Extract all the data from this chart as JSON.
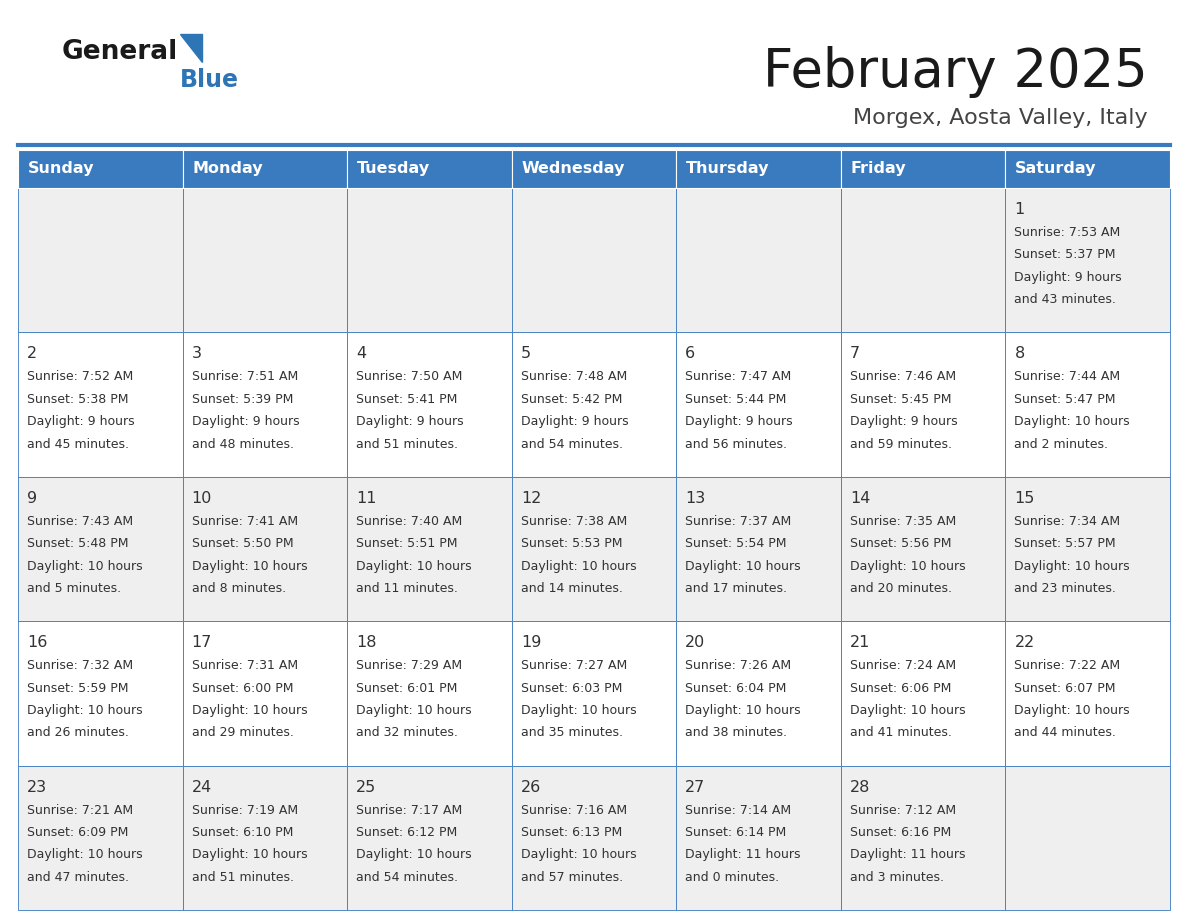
{
  "title": "February 2025",
  "subtitle": "Morgex, Aosta Valley, Italy",
  "header_bg": "#3a7abf",
  "header_text": "#FFFFFF",
  "header_days": [
    "Sunday",
    "Monday",
    "Tuesday",
    "Wednesday",
    "Thursday",
    "Friday",
    "Saturday"
  ],
  "cell_bg_gray": "#EFEFEF",
  "cell_bg_white": "#FFFFFF",
  "cell_border_color": "#3a7abf",
  "day_number_color": "#333333",
  "text_color": "#333333",
  "logo_general_color": "#1a1a1a",
  "logo_blue_color": "#2E75B6",
  "days": [
    {
      "day": 1,
      "col": 6,
      "row": 0,
      "sunrise": "7:53 AM",
      "sunset": "5:37 PM",
      "daylight_line1": "Daylight: 9 hours",
      "daylight_line2": "and 43 minutes."
    },
    {
      "day": 2,
      "col": 0,
      "row": 1,
      "sunrise": "7:52 AM",
      "sunset": "5:38 PM",
      "daylight_line1": "Daylight: 9 hours",
      "daylight_line2": "and 45 minutes."
    },
    {
      "day": 3,
      "col": 1,
      "row": 1,
      "sunrise": "7:51 AM",
      "sunset": "5:39 PM",
      "daylight_line1": "Daylight: 9 hours",
      "daylight_line2": "and 48 minutes."
    },
    {
      "day": 4,
      "col": 2,
      "row": 1,
      "sunrise": "7:50 AM",
      "sunset": "5:41 PM",
      "daylight_line1": "Daylight: 9 hours",
      "daylight_line2": "and 51 minutes."
    },
    {
      "day": 5,
      "col": 3,
      "row": 1,
      "sunrise": "7:48 AM",
      "sunset": "5:42 PM",
      "daylight_line1": "Daylight: 9 hours",
      "daylight_line2": "and 54 minutes."
    },
    {
      "day": 6,
      "col": 4,
      "row": 1,
      "sunrise": "7:47 AM",
      "sunset": "5:44 PM",
      "daylight_line1": "Daylight: 9 hours",
      "daylight_line2": "and 56 minutes."
    },
    {
      "day": 7,
      "col": 5,
      "row": 1,
      "sunrise": "7:46 AM",
      "sunset": "5:45 PM",
      "daylight_line1": "Daylight: 9 hours",
      "daylight_line2": "and 59 minutes."
    },
    {
      "day": 8,
      "col": 6,
      "row": 1,
      "sunrise": "7:44 AM",
      "sunset": "5:47 PM",
      "daylight_line1": "Daylight: 10 hours",
      "daylight_line2": "and 2 minutes."
    },
    {
      "day": 9,
      "col": 0,
      "row": 2,
      "sunrise": "7:43 AM",
      "sunset": "5:48 PM",
      "daylight_line1": "Daylight: 10 hours",
      "daylight_line2": "and 5 minutes."
    },
    {
      "day": 10,
      "col": 1,
      "row": 2,
      "sunrise": "7:41 AM",
      "sunset": "5:50 PM",
      "daylight_line1": "Daylight: 10 hours",
      "daylight_line2": "and 8 minutes."
    },
    {
      "day": 11,
      "col": 2,
      "row": 2,
      "sunrise": "7:40 AM",
      "sunset": "5:51 PM",
      "daylight_line1": "Daylight: 10 hours",
      "daylight_line2": "and 11 minutes."
    },
    {
      "day": 12,
      "col": 3,
      "row": 2,
      "sunrise": "7:38 AM",
      "sunset": "5:53 PM",
      "daylight_line1": "Daylight: 10 hours",
      "daylight_line2": "and 14 minutes."
    },
    {
      "day": 13,
      "col": 4,
      "row": 2,
      "sunrise": "7:37 AM",
      "sunset": "5:54 PM",
      "daylight_line1": "Daylight: 10 hours",
      "daylight_line2": "and 17 minutes."
    },
    {
      "day": 14,
      "col": 5,
      "row": 2,
      "sunrise": "7:35 AM",
      "sunset": "5:56 PM",
      "daylight_line1": "Daylight: 10 hours",
      "daylight_line2": "and 20 minutes."
    },
    {
      "day": 15,
      "col": 6,
      "row": 2,
      "sunrise": "7:34 AM",
      "sunset": "5:57 PM",
      "daylight_line1": "Daylight: 10 hours",
      "daylight_line2": "and 23 minutes."
    },
    {
      "day": 16,
      "col": 0,
      "row": 3,
      "sunrise": "7:32 AM",
      "sunset": "5:59 PM",
      "daylight_line1": "Daylight: 10 hours",
      "daylight_line2": "and 26 minutes."
    },
    {
      "day": 17,
      "col": 1,
      "row": 3,
      "sunrise": "7:31 AM",
      "sunset": "6:00 PM",
      "daylight_line1": "Daylight: 10 hours",
      "daylight_line2": "and 29 minutes."
    },
    {
      "day": 18,
      "col": 2,
      "row": 3,
      "sunrise": "7:29 AM",
      "sunset": "6:01 PM",
      "daylight_line1": "Daylight: 10 hours",
      "daylight_line2": "and 32 minutes."
    },
    {
      "day": 19,
      "col": 3,
      "row": 3,
      "sunrise": "7:27 AM",
      "sunset": "6:03 PM",
      "daylight_line1": "Daylight: 10 hours",
      "daylight_line2": "and 35 minutes."
    },
    {
      "day": 20,
      "col": 4,
      "row": 3,
      "sunrise": "7:26 AM",
      "sunset": "6:04 PM",
      "daylight_line1": "Daylight: 10 hours",
      "daylight_line2": "and 38 minutes."
    },
    {
      "day": 21,
      "col": 5,
      "row": 3,
      "sunrise": "7:24 AM",
      "sunset": "6:06 PM",
      "daylight_line1": "Daylight: 10 hours",
      "daylight_line2": "and 41 minutes."
    },
    {
      "day": 22,
      "col": 6,
      "row": 3,
      "sunrise": "7:22 AM",
      "sunset": "6:07 PM",
      "daylight_line1": "Daylight: 10 hours",
      "daylight_line2": "and 44 minutes."
    },
    {
      "day": 23,
      "col": 0,
      "row": 4,
      "sunrise": "7:21 AM",
      "sunset": "6:09 PM",
      "daylight_line1": "Daylight: 10 hours",
      "daylight_line2": "and 47 minutes."
    },
    {
      "day": 24,
      "col": 1,
      "row": 4,
      "sunrise": "7:19 AM",
      "sunset": "6:10 PM",
      "daylight_line1": "Daylight: 10 hours",
      "daylight_line2": "and 51 minutes."
    },
    {
      "day": 25,
      "col": 2,
      "row": 4,
      "sunrise": "7:17 AM",
      "sunset": "6:12 PM",
      "daylight_line1": "Daylight: 10 hours",
      "daylight_line2": "and 54 minutes."
    },
    {
      "day": 26,
      "col": 3,
      "row": 4,
      "sunrise": "7:16 AM",
      "sunset": "6:13 PM",
      "daylight_line1": "Daylight: 10 hours",
      "daylight_line2": "and 57 minutes."
    },
    {
      "day": 27,
      "col": 4,
      "row": 4,
      "sunrise": "7:14 AM",
      "sunset": "6:14 PM",
      "daylight_line1": "Daylight: 11 hours",
      "daylight_line2": "and 0 minutes."
    },
    {
      "day": 28,
      "col": 5,
      "row": 4,
      "sunrise": "7:12 AM",
      "sunset": "6:16 PM",
      "daylight_line1": "Daylight: 11 hours",
      "daylight_line2": "and 3 minutes."
    }
  ],
  "num_rows": 5,
  "num_cols": 7
}
